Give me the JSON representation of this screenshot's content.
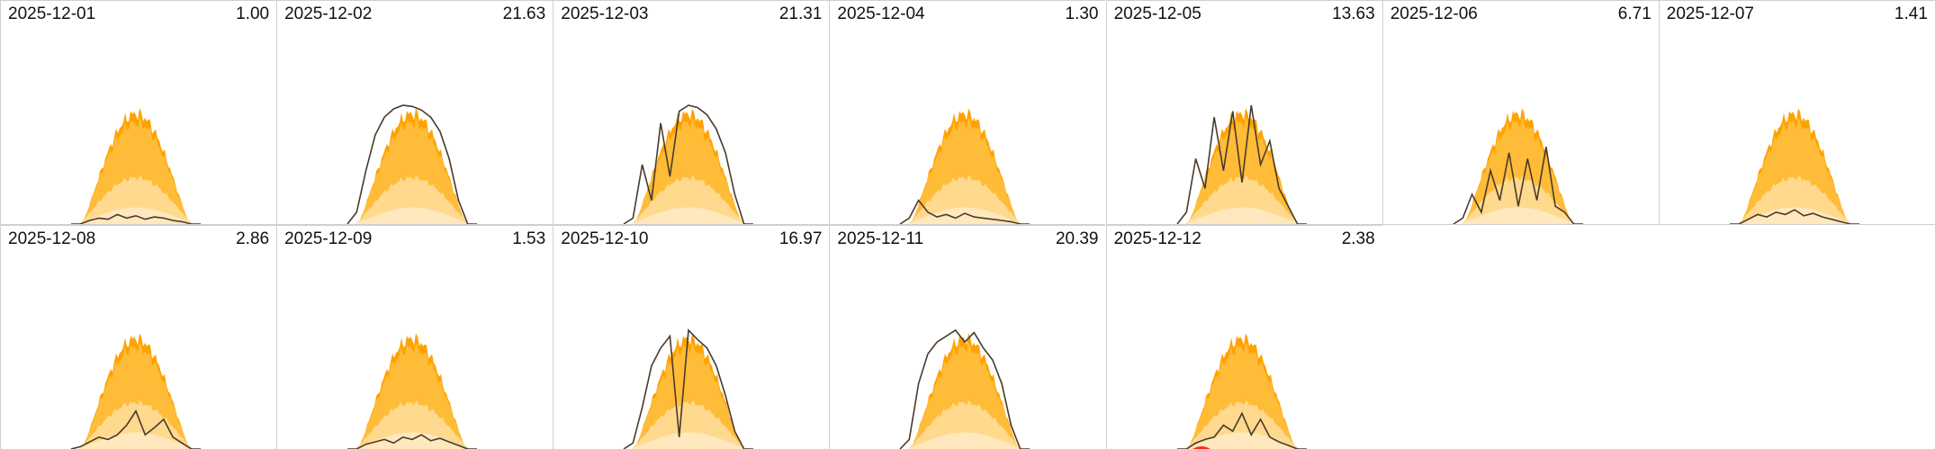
{
  "chart_data": {
    "type": "area",
    "colors": {
      "potential_outer": "#ffa200",
      "potential_mid": "#ffbc38",
      "potential_inner": "#ffd98e",
      "potential_low": "#ffe8bd",
      "actual_line": "#4a3a2a",
      "grid_line": "#cfcfcf",
      "warning": "#ff2a1a"
    },
    "panels": [
      {
        "date": "2025-12-01",
        "total": "1.00",
        "curve": [
          0.0,
          0.0,
          0.03,
          0.05,
          0.04,
          0.08,
          0.05,
          0.07,
          0.04,
          0.06,
          0.05,
          0.03,
          0.02,
          0.0,
          0.0
        ]
      },
      {
        "date": "2025-12-02",
        "total": "21.63",
        "curve": [
          0.0,
          0.1,
          0.45,
          0.75,
          0.9,
          0.97,
          1.0,
          0.99,
          0.96,
          0.9,
          0.78,
          0.55,
          0.2,
          0.0,
          0.0
        ]
      },
      {
        "date": "2025-12-03",
        "total": "21.31",
        "curve": [
          0.0,
          0.05,
          0.5,
          0.2,
          0.85,
          0.4,
          0.95,
          1.0,
          0.98,
          0.92,
          0.8,
          0.6,
          0.25,
          0.0,
          0.0
        ]
      },
      {
        "date": "2025-12-04",
        "total": "1.30",
        "curve": [
          0.0,
          0.05,
          0.2,
          0.1,
          0.06,
          0.08,
          0.05,
          0.09,
          0.06,
          0.05,
          0.04,
          0.03,
          0.02,
          0.0,
          0.0
        ]
      },
      {
        "date": "2025-12-05",
        "total": "13.63",
        "curve": [
          0.0,
          0.1,
          0.55,
          0.3,
          0.9,
          0.45,
          0.95,
          0.35,
          1.0,
          0.5,
          0.7,
          0.3,
          0.15,
          0.0,
          0.0
        ]
      },
      {
        "date": "2025-12-06",
        "total": "6.71",
        "curve": [
          0.0,
          0.05,
          0.25,
          0.1,
          0.45,
          0.2,
          0.6,
          0.15,
          0.55,
          0.2,
          0.65,
          0.15,
          0.1,
          0.0,
          0.0
        ]
      },
      {
        "date": "2025-12-07",
        "total": "1.41",
        "curve": [
          0.0,
          0.0,
          0.04,
          0.08,
          0.06,
          0.1,
          0.08,
          0.12,
          0.07,
          0.09,
          0.06,
          0.04,
          0.02,
          0.0,
          0.0
        ]
      },
      {
        "date": "2025-12-08",
        "total": "2.86",
        "curve": [
          0.0,
          0.02,
          0.06,
          0.1,
          0.08,
          0.12,
          0.2,
          0.32,
          0.12,
          0.18,
          0.25,
          0.1,
          0.05,
          0.0,
          0.0
        ]
      },
      {
        "date": "2025-12-09",
        "total": "1.53",
        "curve": [
          0.0,
          0.0,
          0.04,
          0.06,
          0.08,
          0.05,
          0.1,
          0.08,
          0.12,
          0.07,
          0.09,
          0.06,
          0.03,
          0.0,
          0.0
        ]
      },
      {
        "date": "2025-12-10",
        "total": "16.97",
        "curve": [
          0.0,
          0.05,
          0.35,
          0.7,
          0.85,
          0.95,
          0.1,
          1.0,
          0.92,
          0.85,
          0.7,
          0.45,
          0.15,
          0.0,
          0.0
        ]
      },
      {
        "date": "2025-12-11",
        "total": "20.39",
        "curve": [
          0.0,
          0.08,
          0.55,
          0.8,
          0.9,
          0.95,
          1.0,
          0.9,
          0.98,
          0.85,
          0.75,
          0.55,
          0.2,
          0.0,
          0.0
        ]
      },
      {
        "date": "2025-12-12",
        "total": "2.38",
        "curve": [
          0.0,
          0.0,
          0.05,
          0.08,
          0.1,
          0.2,
          0.15,
          0.3,
          0.12,
          0.25,
          0.1,
          0.06,
          0.03,
          0.0,
          0.0
        ]
      }
    ]
  }
}
